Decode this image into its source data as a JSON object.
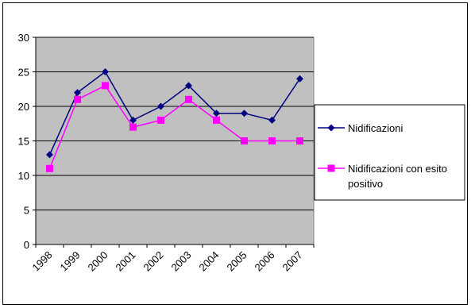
{
  "chart_data": {
    "type": "line",
    "title": "",
    "xlabel": "",
    "ylabel": "",
    "categories": [
      "1998",
      "1999",
      "2000",
      "2001",
      "2002",
      "2003",
      "2004",
      "2005",
      "2006",
      "2007"
    ],
    "ylim": [
      0,
      30
    ],
    "yticks": [
      0,
      5,
      10,
      15,
      20,
      25,
      30
    ],
    "grid": true,
    "plot_background": "#C0C0C0",
    "legend_position": "right",
    "series": [
      {
        "name": "Nidificazioni",
        "values": [
          13,
          22,
          25,
          18,
          20,
          23,
          19,
          19,
          18,
          24
        ],
        "color": "#000080",
        "marker": "diamond"
      },
      {
        "name": "Nidificazioni con esito positivo",
        "values": [
          11,
          21,
          23,
          17,
          18,
          21,
          18,
          15,
          15,
          15
        ],
        "color": "#FF00FF",
        "marker": "square"
      }
    ]
  }
}
